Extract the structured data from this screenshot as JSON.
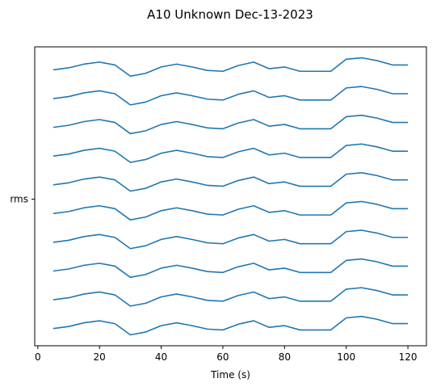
{
  "chart_data": {
    "type": "line",
    "title": "A10 Unknown Dec-13-2023",
    "xlabel": "Time (s)",
    "ylabel": "",
    "y_category_label": "rms",
    "xlim": [
      -1,
      126
    ],
    "ylim": [
      -0.6,
      9.8
    ],
    "grid": false,
    "x_ticks": [
      0,
      20,
      40,
      60,
      80,
      100,
      120
    ],
    "x_tick_labels": [
      "0",
      "20",
      "40",
      "60",
      "80",
      "100",
      "120"
    ],
    "y_ticks": [
      4.5
    ],
    "y_tick_labels": [
      "rms"
    ],
    "x": [
      5,
      10,
      15,
      20,
      25,
      30,
      35,
      40,
      45,
      50,
      55,
      60,
      65,
      70,
      75,
      80,
      85,
      90,
      95,
      100,
      105,
      110,
      115,
      120
    ],
    "shape": [
      0.0,
      0.07,
      0.2,
      0.27,
      0.17,
      -0.22,
      -0.12,
      0.1,
      0.2,
      0.1,
      -0.02,
      -0.05,
      0.15,
      0.27,
      0.04,
      0.1,
      -0.05,
      -0.05,
      -0.05,
      0.37,
      0.42,
      0.32,
      0.17,
      0.17
    ],
    "series_color": "#1f77b4",
    "series": [
      {
        "offset": 0,
        "values": [
          0.0,
          0.07,
          0.2,
          0.27,
          0.17,
          -0.22,
          -0.12,
          0.1,
          0.2,
          0.1,
          -0.02,
          -0.05,
          0.15,
          0.27,
          0.04,
          0.1,
          -0.05,
          -0.05,
          -0.05,
          0.37,
          0.42,
          0.32,
          0.17,
          0.17
        ]
      },
      {
        "offset": 1,
        "values": [
          1.0,
          1.07,
          1.2,
          1.27,
          1.17,
          0.78,
          0.88,
          1.1,
          1.2,
          1.1,
          0.98,
          0.95,
          1.15,
          1.27,
          1.04,
          1.1,
          0.95,
          0.95,
          0.95,
          1.37,
          1.42,
          1.32,
          1.17,
          1.17
        ]
      },
      {
        "offset": 2,
        "values": [
          2.0,
          2.07,
          2.2,
          2.27,
          2.17,
          1.78,
          1.88,
          2.1,
          2.2,
          2.1,
          1.98,
          1.95,
          2.15,
          2.27,
          2.04,
          2.1,
          1.95,
          1.95,
          1.95,
          2.37,
          2.42,
          2.32,
          2.17,
          2.17
        ]
      },
      {
        "offset": 3,
        "values": [
          3.0,
          3.07,
          3.2,
          3.27,
          3.17,
          2.78,
          2.88,
          3.1,
          3.2,
          3.1,
          2.98,
          2.95,
          3.15,
          3.27,
          3.04,
          3.1,
          2.95,
          2.95,
          2.95,
          3.37,
          3.42,
          3.32,
          3.17,
          3.17
        ]
      },
      {
        "offset": 4,
        "values": [
          4.0,
          4.07,
          4.2,
          4.27,
          4.17,
          3.78,
          3.88,
          4.1,
          4.2,
          4.1,
          3.98,
          3.95,
          4.15,
          4.27,
          4.04,
          4.1,
          3.95,
          3.95,
          3.95,
          4.37,
          4.42,
          4.32,
          4.17,
          4.17
        ]
      },
      {
        "offset": 5,
        "values": [
          5.0,
          5.07,
          5.2,
          5.27,
          5.17,
          4.78,
          4.88,
          5.1,
          5.2,
          5.1,
          4.98,
          4.95,
          5.15,
          5.27,
          5.04,
          5.1,
          4.95,
          4.95,
          4.95,
          5.37,
          5.42,
          5.32,
          5.17,
          5.17
        ]
      },
      {
        "offset": 6,
        "values": [
          6.0,
          6.07,
          6.2,
          6.27,
          6.17,
          5.78,
          5.88,
          6.1,
          6.2,
          6.1,
          5.98,
          5.95,
          6.15,
          6.27,
          6.04,
          6.1,
          5.95,
          5.95,
          5.95,
          6.37,
          6.42,
          6.32,
          6.17,
          6.17
        ]
      },
      {
        "offset": 7,
        "values": [
          7.0,
          7.07,
          7.2,
          7.27,
          7.17,
          6.78,
          6.88,
          7.1,
          7.2,
          7.1,
          6.98,
          6.95,
          7.15,
          7.27,
          7.04,
          7.1,
          6.95,
          6.95,
          6.95,
          7.37,
          7.42,
          7.32,
          7.17,
          7.17
        ]
      },
      {
        "offset": 8,
        "values": [
          8.0,
          8.07,
          8.2,
          8.27,
          8.17,
          7.78,
          7.88,
          8.1,
          8.2,
          8.1,
          7.98,
          7.95,
          8.15,
          8.27,
          8.04,
          8.1,
          7.95,
          7.95,
          7.95,
          8.37,
          8.42,
          8.32,
          8.17,
          8.17
        ]
      },
      {
        "offset": 9,
        "values": [
          9.0,
          9.07,
          9.2,
          9.27,
          9.17,
          8.78,
          8.88,
          9.1,
          9.2,
          9.1,
          8.98,
          8.95,
          9.15,
          9.27,
          9.04,
          9.1,
          8.95,
          8.95,
          8.95,
          9.37,
          9.42,
          9.32,
          9.17,
          9.17
        ]
      }
    ]
  }
}
